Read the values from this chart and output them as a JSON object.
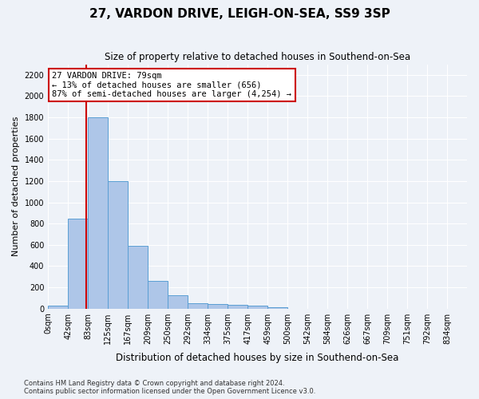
{
  "title": "27, VARDON DRIVE, LEIGH-ON-SEA, SS9 3SP",
  "subtitle": "Size of property relative to detached houses in Southend-on-Sea",
  "xlabel": "Distribution of detached houses by size in Southend-on-Sea",
  "ylabel": "Number of detached properties",
  "footer_line1": "Contains HM Land Registry data © Crown copyright and database right 2024.",
  "footer_line2": "Contains public sector information licensed under the Open Government Licence v3.0.",
  "bar_labels": [
    "0sqm",
    "42sqm",
    "83sqm",
    "125sqm",
    "167sqm",
    "209sqm",
    "250sqm",
    "292sqm",
    "334sqm",
    "375sqm",
    "417sqm",
    "459sqm",
    "500sqm",
    "542sqm",
    "584sqm",
    "626sqm",
    "667sqm",
    "709sqm",
    "751sqm",
    "792sqm",
    "834sqm"
  ],
  "bar_values": [
    25,
    850,
    1800,
    1200,
    590,
    260,
    125,
    50,
    45,
    35,
    28,
    15,
    0,
    0,
    0,
    0,
    0,
    0,
    0,
    0,
    0
  ],
  "bar_color": "#aec6e8",
  "bar_edge_color": "#5a9fd4",
  "annotation_text": "27 VARDON DRIVE: 79sqm\n← 13% of detached houses are smaller (656)\n87% of semi-detached houses are larger (4,254) →",
  "annotation_box_color": "#ffffff",
  "annotation_box_edge": "#cc0000",
  "vline_x": 79,
  "vline_color": "#cc0000",
  "ylim": [
    0,
    2300
  ],
  "yticks": [
    0,
    200,
    400,
    600,
    800,
    1000,
    1200,
    1400,
    1600,
    1800,
    2000,
    2200
  ],
  "bg_color": "#eef2f8",
  "plot_bg_color": "#eef2f8",
  "grid_color": "#ffffff",
  "bin_width": 41.5
}
